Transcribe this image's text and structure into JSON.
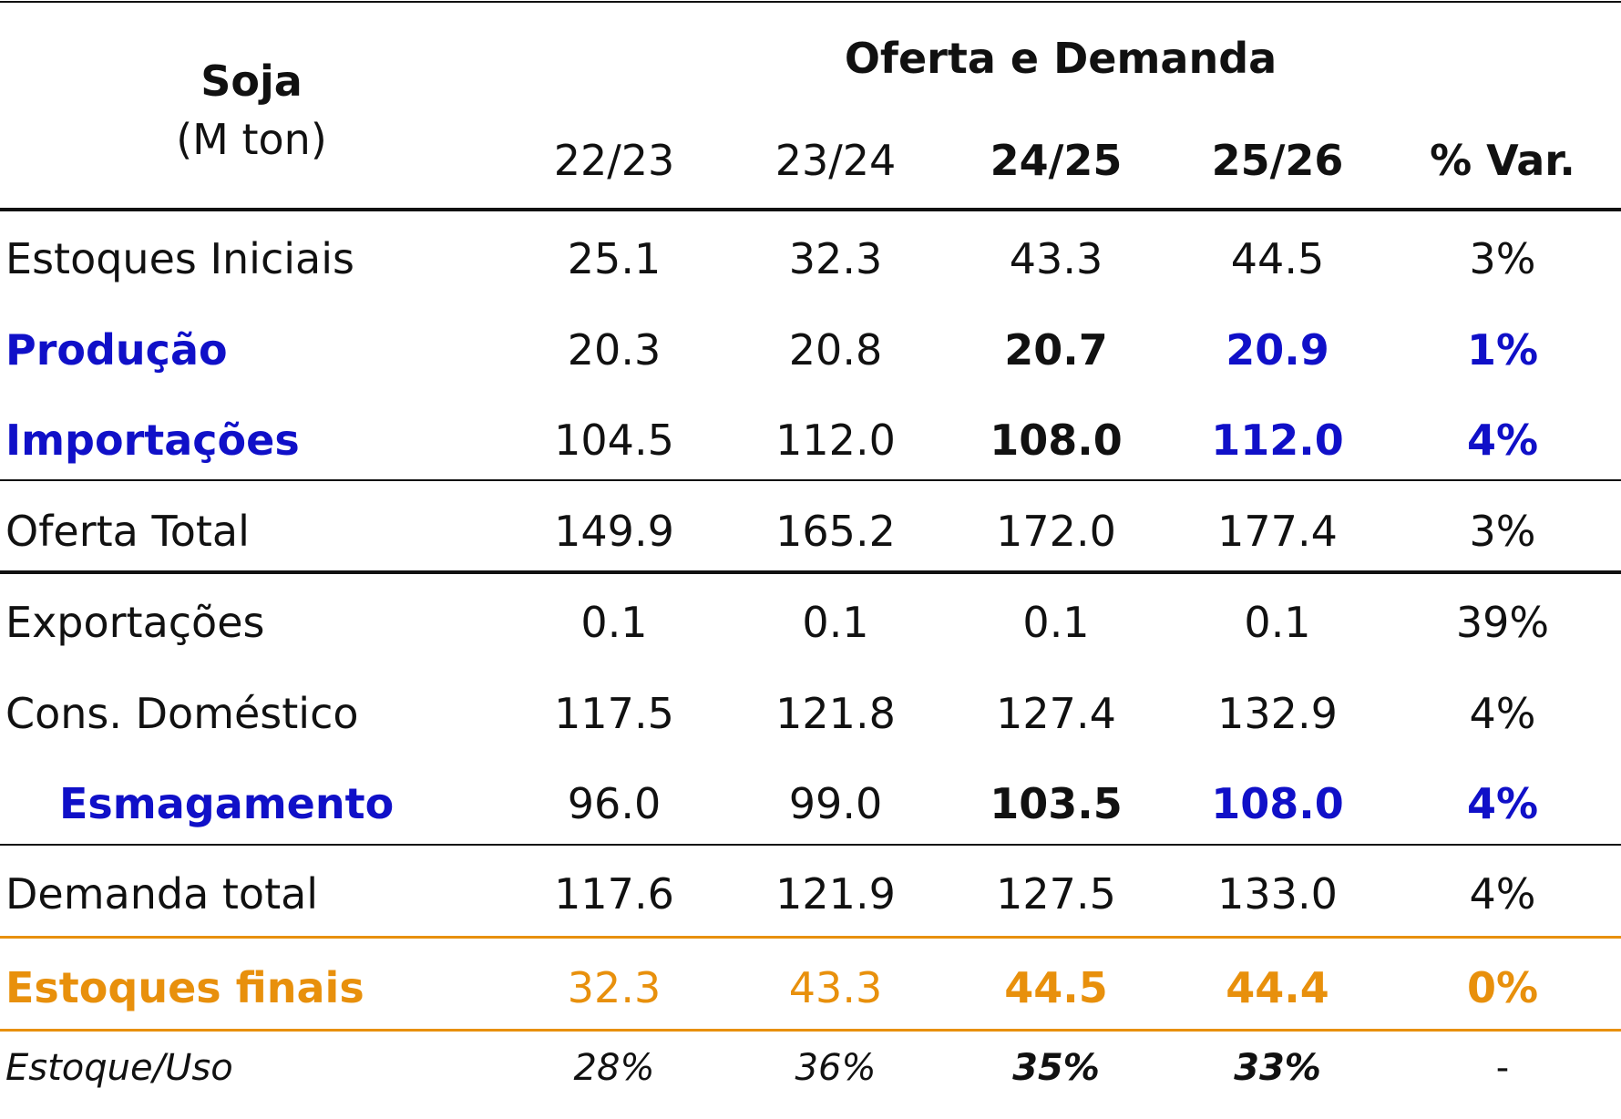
{
  "header": {
    "title": "Soja",
    "unit": "(M ton)",
    "group": "Oferta e Demanda",
    "columns": [
      "22/23",
      "23/24",
      "24/25",
      "25/26",
      "% Var."
    ]
  },
  "table": {
    "rows": [
      {
        "label": "Estoques Iniciais",
        "cells": [
          "25.1",
          "32.3",
          "43.3",
          "44.5",
          "3%"
        ]
      },
      {
        "label": "Produção",
        "cells": [
          "20.3",
          "20.8",
          "20.7",
          "20.9",
          "1%"
        ]
      },
      {
        "label": "Importações",
        "cells": [
          "104.5",
          "112.0",
          "108.0",
          "112.0",
          "4%"
        ]
      },
      {
        "label": "Oferta Total",
        "cells": [
          "149.9",
          "165.2",
          "172.0",
          "177.4",
          "3%"
        ]
      },
      {
        "label": "Exportações",
        "cells": [
          "0.1",
          "0.1",
          "0.1",
          "0.1",
          "39%"
        ]
      },
      {
        "label": "Cons. Doméstico",
        "cells": [
          "117.5",
          "121.8",
          "127.4",
          "132.9",
          "4%"
        ]
      },
      {
        "label": "Esmagamento",
        "cells": [
          "96.0",
          "99.0",
          "103.5",
          "108.0",
          "4%"
        ]
      },
      {
        "label": "Demanda total",
        "cells": [
          "117.6",
          "121.9",
          "127.5",
          "133.0",
          "4%"
        ]
      },
      {
        "label": "Estoques finais",
        "cells": [
          "32.3",
          "43.3",
          "44.5",
          "44.4",
          "0%"
        ]
      },
      {
        "label": "Estoque/Uso",
        "cells": [
          "28%",
          "36%",
          "35%",
          "33%",
          "-"
        ]
      }
    ]
  }
}
